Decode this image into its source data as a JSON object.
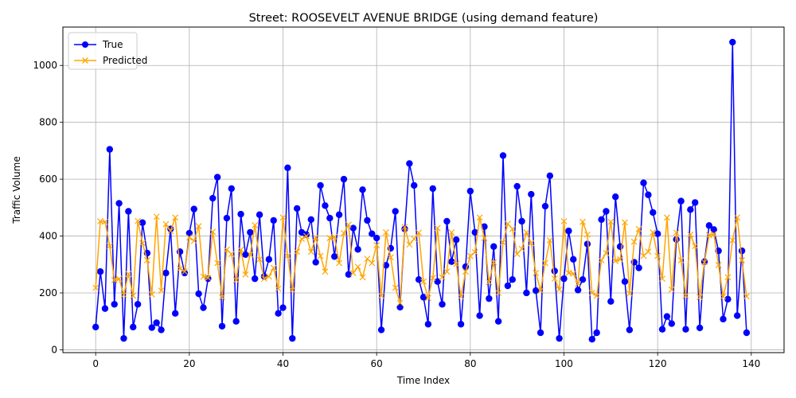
{
  "chart_data": {
    "type": "line",
    "title": "Street: ROOSEVELT AVENUE BRIDGE (using demand feature)",
    "xlabel": "Time Index",
    "ylabel": "Traffic Volume",
    "xlim": [
      -7,
      147
    ],
    "ylim": [
      -10,
      1135
    ],
    "xticks": [
      0,
      20,
      40,
      60,
      80,
      100,
      120,
      140
    ],
    "yticks": [
      0,
      200,
      400,
      600,
      800,
      1000
    ],
    "grid": true,
    "legend_position": "top-left",
    "series": [
      {
        "name": "True",
        "color": "#0000ff",
        "marker": "o",
        "values": [
          80,
          275,
          145,
          705,
          160,
          515,
          40,
          487,
          80,
          160,
          447,
          340,
          78,
          95,
          70,
          270,
          425,
          128,
          345,
          270,
          410,
          495,
          197,
          148,
          250,
          533,
          607,
          83,
          463,
          567,
          100,
          477,
          335,
          413,
          250,
          475,
          258,
          318,
          455,
          128,
          148,
          640,
          40,
          497,
          413,
          405,
          458,
          308,
          578,
          507,
          463,
          328,
          475,
          600,
          265,
          428,
          353,
          563,
          455,
          408,
          393,
          70,
          297,
          357,
          487,
          150,
          425,
          655,
          578,
          247,
          185,
          90,
          567,
          240,
          160,
          452,
          310,
          387,
          90,
          292,
          558,
          413,
          120,
          433,
          180,
          363,
          100,
          683,
          225,
          247,
          575,
          452,
          200,
          547,
          208,
          60,
          505,
          612,
          277,
          40,
          250,
          418,
          318,
          210,
          247,
          372,
          37,
          60,
          458,
          487,
          170,
          538,
          363,
          240,
          70,
          308,
          288,
          587,
          545,
          483,
          408,
          72,
          117,
          92,
          388,
          523,
          72,
          493,
          518,
          77,
          310,
          437,
          423,
          348,
          108,
          178,
          1082,
          120,
          348,
          60
        ]
      },
      {
        "name": "Predicted",
        "color": "#ffa500",
        "marker": "x",
        "values": [
          218,
          452,
          450,
          365,
          245,
          250,
          193,
          267,
          190,
          453,
          375,
          315,
          195,
          468,
          208,
          442,
          418,
          465,
          285,
          275,
          395,
          383,
          435,
          257,
          253,
          415,
          305,
          185,
          352,
          337,
          245,
          352,
          265,
          335,
          438,
          318,
          250,
          258,
          288,
          215,
          465,
          330,
          210,
          345,
          390,
          400,
          345,
          395,
          330,
          275,
          393,
          397,
          305,
          410,
          440,
          270,
          292,
          255,
          320,
          305,
          368,
          190,
          413,
          325,
          218,
          165,
          432,
          370,
          390,
          412,
          240,
          182,
          253,
          428,
          255,
          275,
          413,
          302,
          187,
          275,
          330,
          343,
          465,
          393,
          238,
          308,
          200,
          378,
          443,
          425,
          337,
          355,
          413,
          375,
          270,
          208,
          305,
          385,
          250,
          212,
          452,
          270,
          268,
          232,
          450,
          405,
          200,
          190,
          315,
          340,
          450,
          312,
          318,
          448,
          198,
          380,
          425,
          330,
          345,
          413,
          330,
          250,
          465,
          212,
          412,
          315,
          190,
          405,
          365,
          185,
          308,
          403,
          407,
          298,
          187,
          255,
          385,
          465,
          315,
          188
        ]
      }
    ]
  }
}
